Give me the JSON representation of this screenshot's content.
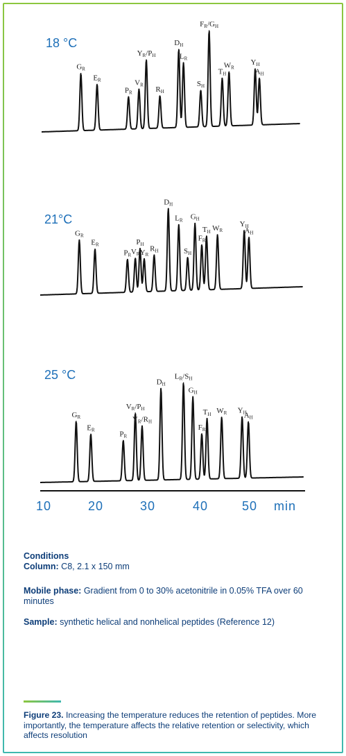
{
  "chart_data": {
    "type": "line",
    "xlabel": "min",
    "xticks": [
      "10",
      "20",
      "30",
      "40",
      "50"
    ],
    "xlim": [
      10,
      54
    ],
    "panels": [
      {
        "title": "18 °C",
        "peaks": [
          {
            "label": "G",
            "sub": "R",
            "t": 17.5,
            "h": 0.55
          },
          {
            "label": "E",
            "sub": "R",
            "t": 20.6,
            "h": 0.44
          },
          {
            "label": "P",
            "sub": "R",
            "t": 26.6,
            "h": 0.31
          },
          {
            "label": "V",
            "sub": "R",
            "t": 28.6,
            "h": 0.38
          },
          {
            "label": "Y",
            "sub": "R",
            "t": 30.0,
            "h": 0.66,
            "label2": "P",
            "sub2": "H"
          },
          {
            "label": "R",
            "sub": "H",
            "t": 32.6,
            "h": 0.31
          },
          {
            "label": "D",
            "sub": "H",
            "t": 36.2,
            "h": 0.75
          },
          {
            "label": "L",
            "sub": "R",
            "t": 37.1,
            "h": 0.62
          },
          {
            "label": "S",
            "sub": "H",
            "t": 40.4,
            "h": 0.35
          },
          {
            "label": "F",
            "sub": "R",
            "t": 42.0,
            "h": 0.92,
            "label2": "G",
            "sub2": "H"
          },
          {
            "label": "T",
            "sub": "H",
            "t": 44.5,
            "h": 0.46
          },
          {
            "label": "W",
            "sub": "R",
            "t": 45.8,
            "h": 0.52
          },
          {
            "label": "Y",
            "sub": "H",
            "t": 50.8,
            "h": 0.54
          },
          {
            "label": "A",
            "sub": "H",
            "t": 51.6,
            "h": 0.45
          }
        ]
      },
      {
        "title": "21°C",
        "peaks": [
          {
            "label": "G",
            "sub": "R",
            "t": 17.2,
            "h": 0.62
          },
          {
            "label": "E",
            "sub": "R",
            "t": 20.2,
            "h": 0.51
          },
          {
            "label": "P",
            "sub": "R",
            "t": 26.4,
            "h": 0.38
          },
          {
            "label": "V",
            "sub": "R",
            "t": 27.9,
            "h": 0.39
          },
          {
            "label": "P",
            "sub": "H",
            "t": 28.8,
            "h": 0.5
          },
          {
            "label": "Y",
            "sub": "R",
            "t": 29.6,
            "h": 0.38
          },
          {
            "label": "R",
            "sub": "H",
            "t": 31.5,
            "h": 0.42
          },
          {
            "label": "D",
            "sub": "H",
            "t": 34.2,
            "h": 0.95
          },
          {
            "label": "L",
            "sub": "R",
            "t": 36.2,
            "h": 0.76
          },
          {
            "label": "S",
            "sub": "H",
            "t": 37.9,
            "h": 0.38
          },
          {
            "label": "G",
            "sub": "H",
            "t": 39.3,
            "h": 0.77
          },
          {
            "label": "F",
            "sub": "R",
            "t": 40.6,
            "h": 0.52
          },
          {
            "label": "T",
            "sub": "H",
            "t": 41.5,
            "h": 0.62
          },
          {
            "label": "W",
            "sub": "R",
            "t": 43.6,
            "h": 0.63
          },
          {
            "label": "Y",
            "sub": "H",
            "t": 48.7,
            "h": 0.67
          },
          {
            "label": "A",
            "sub": "H",
            "t": 49.6,
            "h": 0.59
          }
        ]
      },
      {
        "title": "25 °C",
        "peaks": [
          {
            "label": "G",
            "sub": "R",
            "t": 16.6,
            "h": 0.6
          },
          {
            "label": "E",
            "sub": "R",
            "t": 19.4,
            "h": 0.47
          },
          {
            "label": "P",
            "sub": "R",
            "t": 25.6,
            "h": 0.4
          },
          {
            "label": "V",
            "sub": "R",
            "t": 27.9,
            "h": 0.67,
            "label2": "P",
            "sub2": "H"
          },
          {
            "label": "Y",
            "sub": "R",
            "t": 29.2,
            "h": 0.54,
            "label2": "R",
            "sub2": "H"
          },
          {
            "label": "D",
            "sub": "H",
            "t": 32.8,
            "h": 0.91
          },
          {
            "label": "L",
            "sub": "R",
            "t": 37.1,
            "h": 0.96,
            "label2": "S",
            "sub2": "H"
          },
          {
            "label": "G",
            "sub": "H",
            "t": 38.9,
            "h": 0.82
          },
          {
            "label": "F",
            "sub": "R",
            "t": 40.6,
            "h": 0.45
          },
          {
            "label": "T",
            "sub": "H",
            "t": 41.6,
            "h": 0.6
          },
          {
            "label": "W",
            "sub": "R",
            "t": 44.4,
            "h": 0.61
          },
          {
            "label": "Y",
            "sub": "H",
            "t": 48.3,
            "h": 0.61
          },
          {
            "label": "A",
            "sub": "H",
            "t": 49.5,
            "h": 0.56
          }
        ]
      }
    ]
  },
  "conditions": {
    "heading": "Conditions",
    "column_label": "Column:",
    "column_value": " C8, 2.1 x 150 mm",
    "mobile_label": "Mobile phase:",
    "mobile_value": " Gradient from 0 to 30% acetonitrile in 0.05% TFA over 60 minutes",
    "sample_label": "Sample:",
    "sample_value": " synthetic helical and nonhelical peptides (Reference 12)"
  },
  "caption": {
    "label": "Figure 23.",
    "text": " Increasing the temperature reduces the retention of peptides. More importantly, the temperature affects the relative retention or selectivity, which affects resolution"
  },
  "colors": {
    "accent": "#1d6fb8",
    "text": "#0d3d78",
    "trace": "#111111"
  }
}
